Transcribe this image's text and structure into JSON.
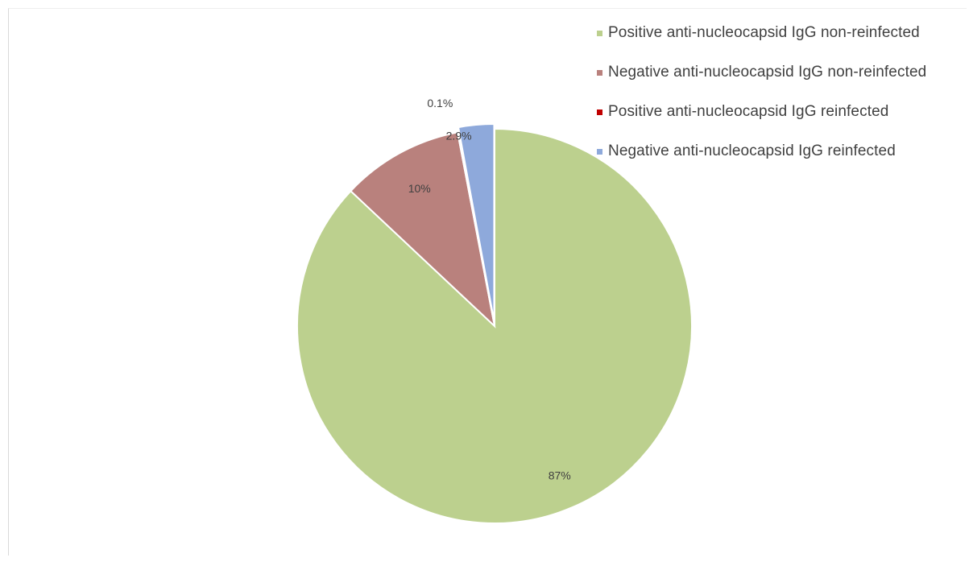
{
  "chart_data": {
    "type": "pie",
    "title": "",
    "start_angle_deg": 0,
    "direction": "clockwise",
    "legend_position": "top-right",
    "slices": [
      {
        "name": "Positive anti-nucleocapsid IgG non-reinfected",
        "value": 87,
        "label": "87%",
        "color": "#bcd08e"
      },
      {
        "name": "Negative anti-nucleocapsid IgG non-reinfected",
        "value": 10,
        "label": "10%",
        "color": "#b9817d"
      },
      {
        "name": "Positive anti-nucleocapsid IgG reinfected",
        "value": 0.1,
        "label": "0.1%",
        "color": "#c00000"
      },
      {
        "name": "Negative anti-nucleocapsid IgG reinfected",
        "value": 2.9,
        "label": "2.9%",
        "color": "#8ea9db"
      }
    ]
  }
}
